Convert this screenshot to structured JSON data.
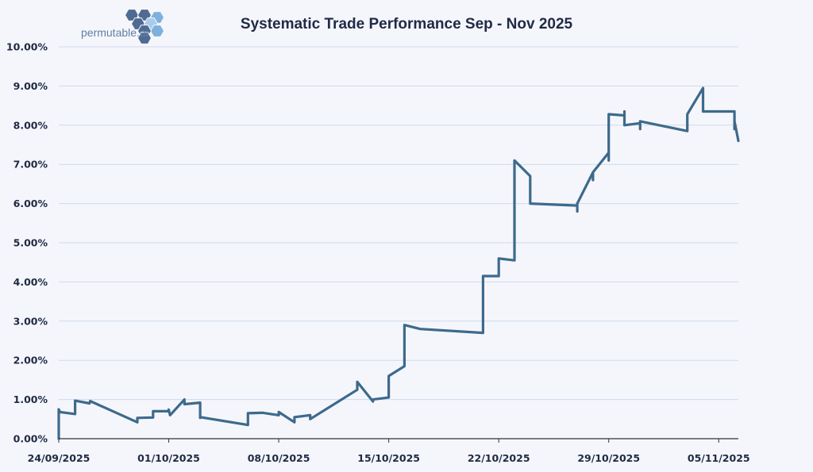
{
  "logo": {
    "text": "permutable.ai",
    "colors": [
      "#4f6b93",
      "#7fb0dd",
      "#a9ccec"
    ]
  },
  "chart_data": {
    "type": "line",
    "title": "Systematic Trade Performance Sep - Nov 2025",
    "xlabel": "",
    "ylabel": "",
    "ylim": [
      0,
      0.1
    ],
    "yticks": [
      0,
      0.01,
      0.02,
      0.03,
      0.04,
      0.05,
      0.06,
      0.07,
      0.08,
      0.09,
      0.1
    ],
    "ytick_labels": [
      "0.00%",
      "1.00%",
      "2.00%",
      "3.00%",
      "4.00%",
      "5.00%",
      "6.00%",
      "7.00%",
      "8.00%",
      "9.00%",
      "10.00%"
    ],
    "xlim": [
      "2025-09-24",
      "2025-11-06T06:00"
    ],
    "xticks": [
      "2025-09-24",
      "2025-10-01",
      "2025-10-08",
      "2025-10-15",
      "2025-10-22",
      "2025-10-29",
      "2025-11-05"
    ],
    "xtick_labels": [
      "24/09/2025",
      "01/10/2025",
      "08/10/2025",
      "15/10/2025",
      "22/10/2025",
      "29/10/2025",
      "05/11/2025"
    ],
    "grid": true,
    "line_color": "#3d6a8c",
    "series": [
      {
        "x": [
          "2025-09-24T00:00",
          "2025-09-24T00:00",
          "2025-09-24T02:00",
          "2025-09-25T01:00",
          "2025-09-25T01:00",
          "2025-09-25T23:00",
          "2025-09-26T00:00",
          "2025-09-29T00:00",
          "2025-09-29T00:00",
          "2025-09-30T00:00",
          "2025-09-30T00:00",
          "2025-09-30T00:00",
          "2025-10-01T00:00",
          "2025-10-01T00:00",
          "2025-10-01T02:00",
          "2025-10-02T00:00",
          "2025-10-02T00:00",
          "2025-10-03T00:00",
          "2025-10-03T00:00",
          "2025-10-03T00:00",
          "2025-10-06T01:00",
          "2025-10-06T01:00",
          "2025-10-06T23:00",
          "2025-10-07T00:00",
          "2025-10-08T00:00",
          "2025-10-08T00:00",
          "2025-10-09T00:00",
          "2025-10-09T00:00",
          "2025-10-09T00:00",
          "2025-10-10T00:00",
          "2025-10-10T00:00",
          "2025-10-13T00:00",
          "2025-10-13T00:00",
          "2025-10-14T00:00",
          "2025-10-14T00:00",
          "2025-10-15T00:00",
          "2025-10-15T00:00",
          "2025-10-16T00:00",
          "2025-10-16T00:00",
          "2025-10-16T00:00",
          "2025-10-17T00:00",
          "2025-10-21T00:00",
          "2025-10-21T00:00",
          "2025-10-21T00:00",
          "2025-10-22T00:00",
          "2025-10-22T00:00",
          "2025-10-23T00:00",
          "2025-10-23T00:00",
          "2025-10-24T00:00",
          "2025-10-24T00:00",
          "2025-10-24T00:00",
          "2025-10-27T00:00",
          "2025-10-27T00:00",
          "2025-10-27T00:00",
          "2025-10-28T00:00",
          "2025-10-28T00:00",
          "2025-10-28T00:00",
          "2025-10-29T00:00",
          "2025-10-29T00:00",
          "2025-10-29T00:00",
          "2025-10-30T00:00",
          "2025-10-30T00:00",
          "2025-10-30T00:00",
          "2025-10-31T00:00",
          "2025-10-31T00:00",
          "2025-10-31T00:00",
          "2025-11-03T00:00",
          "2025-11-03T00:00",
          "2025-11-04T00:00",
          "2025-11-04T00:00",
          "2025-11-06T00:00",
          "2025-11-06T00:00",
          "2025-11-06T00:00",
          "2025-11-06T06:00"
        ],
        "y": [
          0.0,
          0.0075,
          0.0068,
          0.0063,
          0.0097,
          0.009,
          0.0096,
          0.0042,
          0.0053,
          0.0054,
          0.0068,
          0.007,
          0.007,
          0.0074,
          0.006,
          0.01,
          0.0088,
          0.0092,
          0.0053,
          0.0055,
          0.0035,
          0.0065,
          0.0066,
          0.0066,
          0.006,
          0.0068,
          0.0042,
          0.0045,
          0.0055,
          0.006,
          0.005,
          0.0125,
          0.0145,
          0.0095,
          0.01,
          0.0105,
          0.016,
          0.0185,
          0.0283,
          0.029,
          0.028,
          0.027,
          0.0285,
          0.0415,
          0.0415,
          0.046,
          0.0455,
          0.071,
          0.067,
          0.0635,
          0.06,
          0.0595,
          0.058,
          0.06,
          0.068,
          0.066,
          0.068,
          0.073,
          0.071,
          0.0828,
          0.0825,
          0.0835,
          0.08,
          0.0805,
          0.079,
          0.081,
          0.0785,
          0.0828,
          0.0895,
          0.0835,
          0.0835,
          0.079,
          0.081,
          0.076
        ]
      }
    ]
  }
}
